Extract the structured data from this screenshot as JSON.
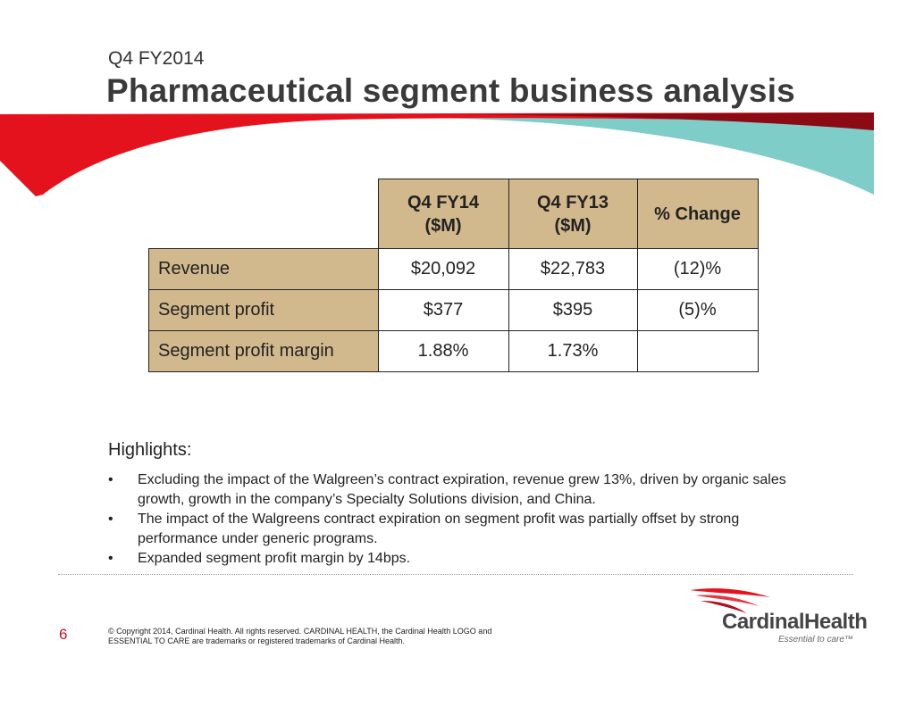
{
  "header": {
    "subtitle": "Q4 FY2014",
    "title": "Pharmaceutical segment business analysis"
  },
  "table": {
    "columns": [
      "Q4 FY14\n($M)",
      "Q4 FY13\n($M)",
      "% Change"
    ],
    "col1_line1": "Q4 FY14",
    "col1_line2": "($M)",
    "col2_line1": "Q4 FY13",
    "col2_line2": "($M)",
    "col3": "% Change",
    "rows": [
      {
        "label": "Revenue",
        "fy14": "$20,092",
        "fy13": "$22,783",
        "change": "(12)%"
      },
      {
        "label": "Segment profit",
        "fy14": "$377",
        "fy13": "$395",
        "change": "(5)%"
      },
      {
        "label": "Segment profit margin",
        "fy14": "1.88%",
        "fy13": "1.73%",
        "change": ""
      }
    ]
  },
  "highlights": {
    "title": "Highlights:",
    "bullet_glyph": "•",
    "items": [
      "Excluding the impact of the Walgreen’s contract expiration, revenue grew 13%, driven by organic sales growth, growth in the company’s Specialty Solutions division, and China.",
      "The impact of the Walgreens contract expiration on segment profit was partially offset by strong performance under generic programs.",
      "Expanded segment profit margin by 14bps."
    ]
  },
  "footer": {
    "page_number": "6",
    "copyright": "© Copyright 2014, Cardinal Health. All rights reserved. CARDINAL HEALTH, the Cardinal Health LOGO and ESSENTIAL TO CARE are trademarks or registered trademarks of Cardinal Health.",
    "logo_text": "CardinalHealth",
    "logo_tagline": "Essential to care™"
  },
  "colors": {
    "swoosh_red": "#e4121c",
    "swoosh_dark_red": "#8b0a14",
    "swoosh_teal": "#7fcdc8",
    "table_header_bg": "#d2b98d",
    "page_number": "#c8102e"
  }
}
